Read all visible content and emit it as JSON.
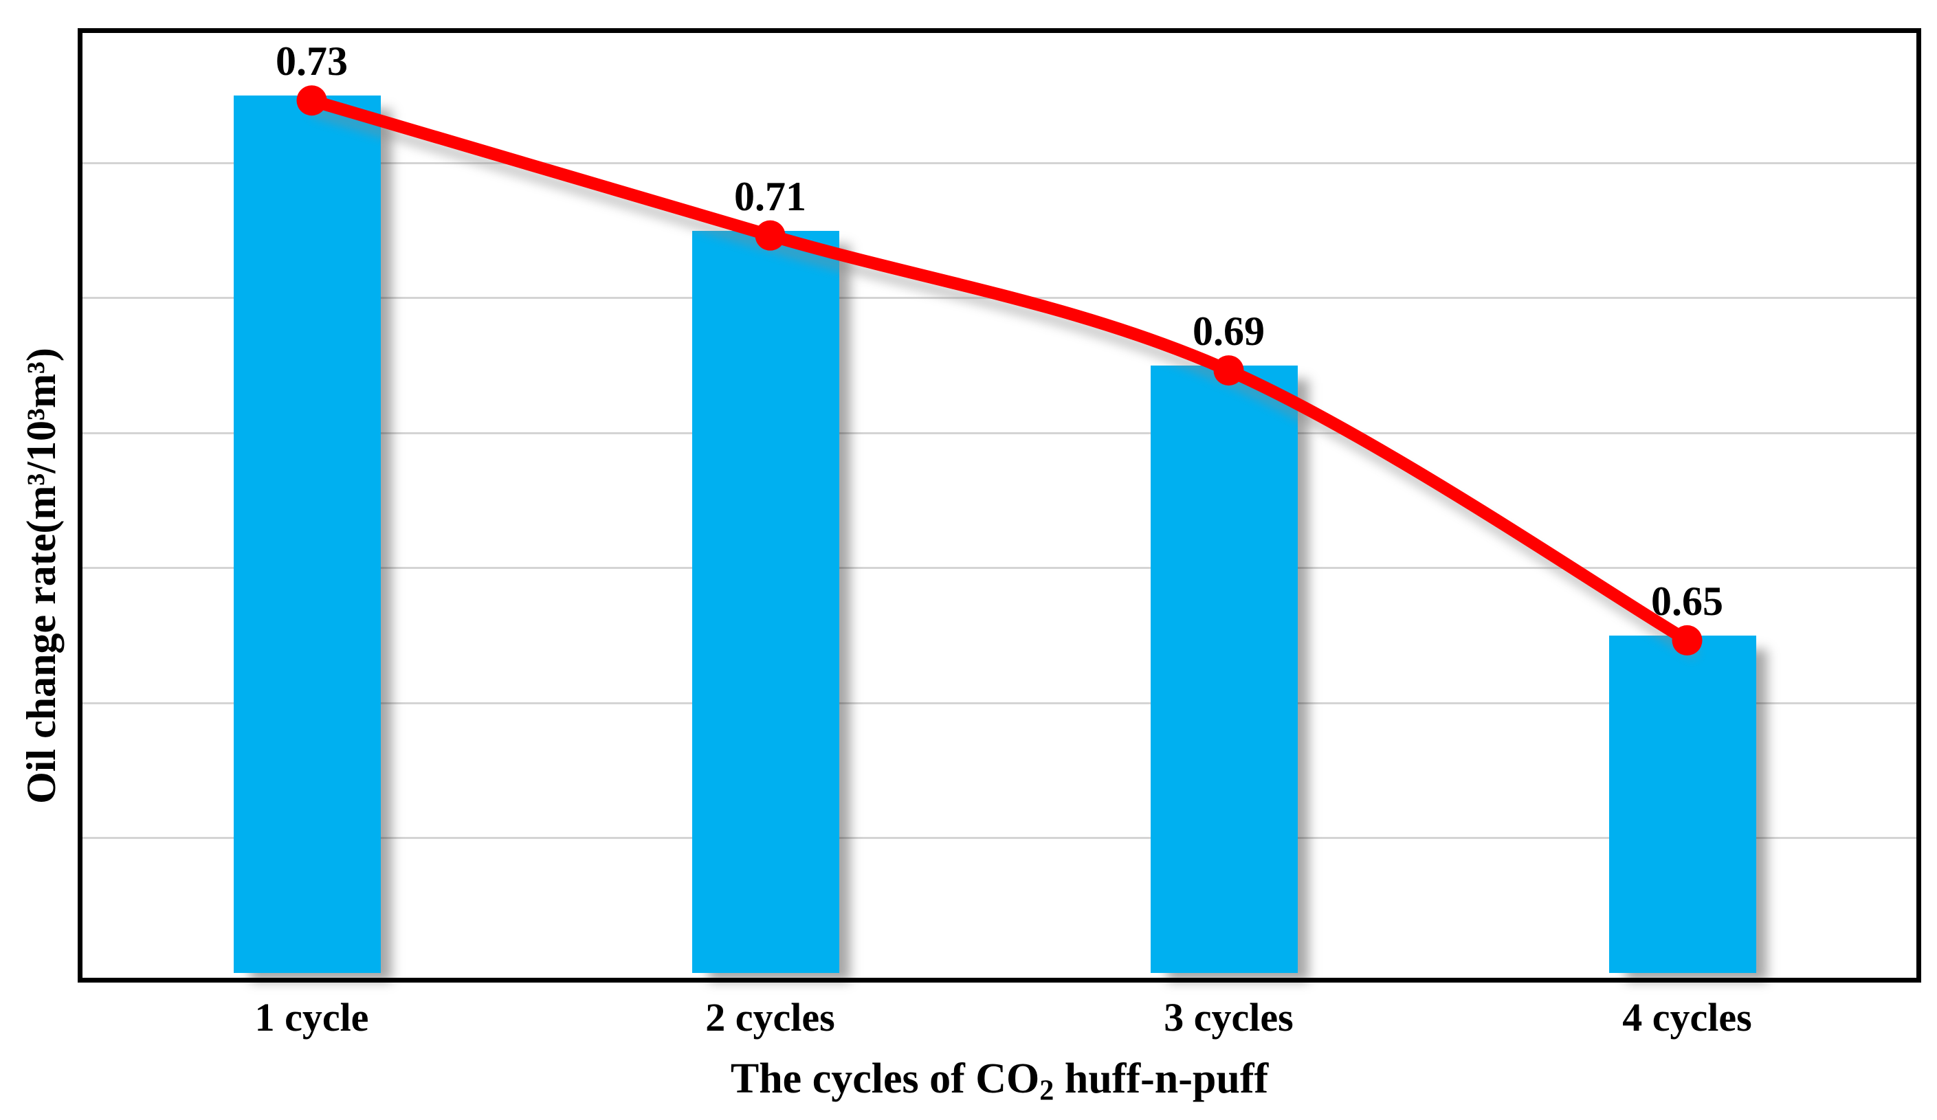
{
  "chart_data": {
    "type": "bar",
    "subtype": "bar-with-smoothed-line-overlay",
    "categories": [
      "1 cycle",
      "2 cycles",
      "3 cycles",
      "4 cycles"
    ],
    "series": [
      {
        "name": "Oil change rate (bars)",
        "type": "bar",
        "values": [
          0.73,
          0.71,
          0.69,
          0.65
        ]
      },
      {
        "name": "Oil change rate (trend line)",
        "type": "line",
        "values": [
          0.73,
          0.71,
          0.69,
          0.65
        ]
      }
    ],
    "data_labels": [
      "0.73",
      "0.71",
      "0.69",
      "0.65"
    ],
    "title": "",
    "xlabel": "The cycles of CO₂ huff-n-puff",
    "xlabel_parts": {
      "before": "The cycles of CO",
      "subscript": "2",
      "after": " huff-n-puff"
    },
    "ylabel": "Oil change rate(m³/10³m³)",
    "ylim": [
      0.6,
      0.74
    ],
    "gridline_step": 0.02,
    "grid": "horizontal-only",
    "y_tick_labels_shown": false,
    "legend": "none",
    "colors": {
      "bar": "#00B0F0",
      "line": "#FF0000",
      "marker": "#FF0000",
      "gridline": "#D4D4D4",
      "frame": "#000000",
      "background": "#FFFFFF",
      "text": "#000000"
    }
  }
}
